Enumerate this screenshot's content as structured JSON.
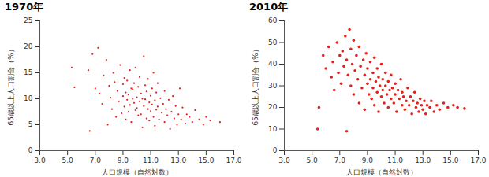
{
  "chart_data": [
    {
      "type": "scatter",
      "title": "1970年",
      "color": "#e3201b",
      "x_label": "人口規模（自然対数）",
      "y_label": "65歳以上人口割合（%）",
      "xlim": [
        3,
        17
      ],
      "xticks": [
        {
          "value": 3,
          "label": "3.0"
        },
        {
          "value": 5,
          "label": "5.0"
        },
        {
          "value": 7,
          "label": "7.0"
        },
        {
          "value": 9,
          "label": "9.0"
        },
        {
          "value": 11,
          "label": "11.0"
        },
        {
          "value": 13,
          "label": "13.0"
        },
        {
          "value": 15,
          "label": "15.0"
        },
        {
          "value": 17,
          "label": "17.0"
        }
      ],
      "ylim": [
        0,
        25
      ],
      "yticks": [
        0,
        5,
        10,
        15,
        20,
        25
      ],
      "x": [
        5.3,
        5.5,
        6.5,
        6.6,
        6.8,
        7.0,
        7.2,
        7.3,
        7.5,
        7.6,
        7.8,
        7.9,
        8.0,
        8.1,
        8.2,
        8.3,
        8.4,
        8.5,
        8.6,
        8.7,
        8.8,
        8.9,
        9.0,
        9.0,
        9.1,
        9.1,
        9.2,
        9.2,
        9.3,
        9.3,
        9.4,
        9.4,
        9.5,
        9.5,
        9.6,
        9.6,
        9.7,
        9.7,
        9.8,
        9.8,
        9.9,
        9.9,
        10.0,
        10.0,
        10.1,
        10.1,
        10.2,
        10.2,
        10.3,
        10.3,
        10.4,
        10.4,
        10.5,
        10.5,
        10.6,
        10.6,
        10.7,
        10.7,
        10.8,
        10.8,
        10.9,
        10.9,
        11.0,
        11.0,
        11.1,
        11.1,
        11.2,
        11.2,
        11.3,
        11.3,
        11.4,
        11.4,
        11.5,
        11.5,
        11.6,
        11.7,
        11.8,
        11.9,
        12.0,
        12.0,
        12.1,
        12.2,
        12.3,
        12.4,
        12.5,
        12.6,
        12.7,
        12.8,
        12.9,
        13.0,
        13.1,
        13.2,
        13.3,
        13.5,
        13.6,
        13.8,
        14.0,
        14.2,
        14.5,
        14.8,
        15.0,
        15.3,
        16.0
      ],
      "values": [
        16.0,
        12.2,
        15.5,
        3.8,
        18.6,
        12.0,
        19.8,
        11.0,
        9.0,
        14.5,
        17.5,
        5.0,
        12.5,
        10.2,
        8.0,
        15.0,
        13.2,
        6.5,
        11.5,
        9.5,
        16.5,
        7.2,
        10.5,
        12.8,
        8.5,
        14.0,
        6.0,
        11.2,
        9.8,
        13.5,
        7.5,
        10.8,
        15.5,
        8.8,
        12.0,
        5.5,
        10.0,
        11.8,
        9.2,
        13.0,
        7.8,
        16.0,
        10.3,
        8.2,
        12.3,
        6.8,
        9.5,
        14.2,
        11.0,
        7.0,
        10.0,
        4.5,
        18.2,
        8.6,
        12.6,
        9.9,
        6.2,
        11.4,
        8.0,
        13.8,
        9.3,
        5.8,
        10.6,
        7.6,
        12.0,
        8.9,
        6.5,
        15.0,
        9.7,
        4.8,
        11.2,
        7.9,
        8.5,
        13.0,
        6.0,
        10.1,
        7.3,
        9.0,
        5.5,
        11.5,
        8.0,
        6.8,
        9.8,
        4.2,
        7.5,
        10.5,
        6.2,
        8.6,
        5.0,
        7.0,
        12.0,
        6.0,
        8.3,
        5.2,
        7.0,
        6.5,
        5.5,
        7.8,
        6.0,
        5.0,
        6.5,
        5.8,
        5.5
      ]
    },
    {
      "type": "scatter",
      "title": "2010年",
      "color": "#e3201b",
      "x_label": "人口規模（自然対数）",
      "y_label": "65歳以上人口割合（%）",
      "xlim": [
        3,
        17
      ],
      "xticks": [
        {
          "value": 3,
          "label": "3.0"
        },
        {
          "value": 5,
          "label": "5.0"
        },
        {
          "value": 7,
          "label": "7.0"
        },
        {
          "value": 9,
          "label": "9.0"
        },
        {
          "value": 11,
          "label": "11.0"
        },
        {
          "value": 13,
          "label": "13.0"
        },
        {
          "value": 15,
          "label": "15.0"
        },
        {
          "value": 17,
          "label": "17.0"
        }
      ],
      "ylim": [
        0,
        60
      ],
      "yticks": [
        0,
        10,
        20,
        30,
        40,
        50,
        60
      ],
      "x": [
        5.4,
        5.5,
        5.8,
        6.0,
        6.2,
        6.4,
        6.5,
        6.6,
        6.8,
        6.9,
        7.0,
        7.1,
        7.2,
        7.3,
        7.4,
        7.5,
        7.5,
        7.6,
        7.7,
        7.8,
        7.8,
        7.9,
        8.0,
        8.0,
        8.1,
        8.2,
        8.3,
        8.4,
        8.4,
        8.5,
        8.6,
        8.7,
        8.8,
        8.8,
        8.9,
        9.0,
        9.0,
        9.1,
        9.2,
        9.2,
        9.3,
        9.4,
        9.4,
        9.5,
        9.5,
        9.6,
        9.7,
        9.7,
        9.8,
        9.8,
        9.9,
        10.0,
        10.0,
        10.1,
        10.1,
        10.2,
        10.3,
        10.3,
        10.4,
        10.5,
        10.5,
        10.6,
        10.7,
        10.7,
        10.8,
        10.9,
        11.0,
        11.0,
        11.1,
        11.2,
        11.3,
        11.4,
        11.5,
        11.5,
        11.6,
        11.7,
        11.8,
        11.9,
        12.0,
        12.1,
        12.2,
        12.3,
        12.4,
        12.5,
        12.6,
        12.7,
        12.8,
        12.9,
        13.0,
        13.1,
        13.2,
        13.3,
        13.5,
        13.6,
        13.8,
        14.0,
        14.2,
        14.5,
        14.8,
        15.2,
        15.5,
        16.0
      ],
      "values": [
        10.0,
        20.0,
        44.0,
        38.0,
        48.0,
        34.0,
        41.0,
        28.0,
        50.0,
        36.0,
        44.0,
        31.0,
        46.0,
        39.0,
        53.0,
        9.0,
        42.0,
        35.0,
        56.0,
        47.0,
        30.0,
        40.0,
        51.0,
        26.0,
        37.0,
        44.0,
        33.0,
        48.0,
        22.0,
        39.0,
        29.0,
        42.0,
        35.0,
        19.0,
        45.0,
        31.0,
        38.0,
        26.0,
        41.0,
        33.0,
        24.0,
        36.0,
        29.0,
        43.0,
        21.0,
        32.0,
        38.0,
        27.0,
        34.0,
        18.0,
        30.0,
        40.0,
        25.0,
        33.0,
        28.0,
        22.0,
        36.0,
        30.0,
        26.0,
        32.0,
        20.0,
        28.0,
        35.0,
        24.0,
        29.0,
        22.0,
        31.0,
        26.0,
        18.0,
        28.0,
        24.0,
        33.0,
        21.0,
        27.0,
        25.0,
        19.0,
        23.0,
        29.0,
        21.0,
        25.0,
        17.0,
        23.0,
        27.0,
        20.0,
        22.0,
        18.0,
        24.0,
        21.0,
        19.0,
        23.0,
        17.0,
        21.0,
        20.0,
        23.0,
        18.0,
        21.0,
        19.0,
        22.0,
        20.0,
        21.0,
        20.0,
        19.5
      ]
    }
  ]
}
